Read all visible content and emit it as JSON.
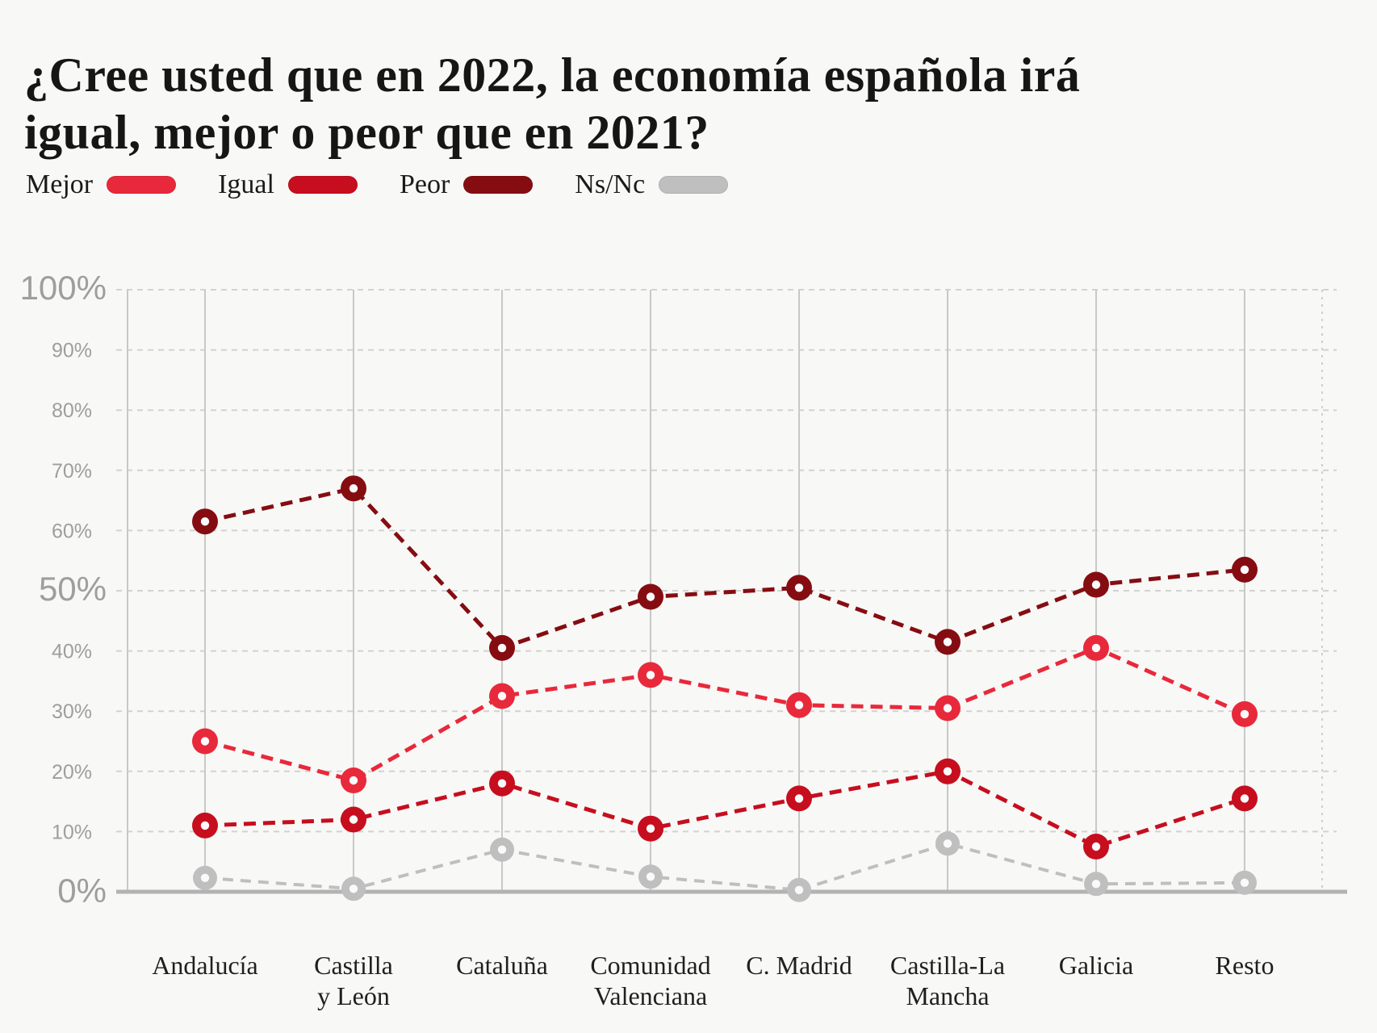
{
  "title": {
    "line1": "¿Cree usted que en 2022, la economía española irá",
    "line2": "igual, mejor o peor que en 2021?"
  },
  "legend": {
    "items": [
      {
        "label": "Mejor",
        "color": "#e8293b"
      },
      {
        "label": "Igual",
        "color": "#c60e1f"
      },
      {
        "label": "Peor",
        "color": "#850d12"
      },
      {
        "label": "Ns/Nc",
        "color": "#bfbfbf"
      }
    ]
  },
  "chart_data": {
    "type": "line",
    "title": "¿Cree usted que en 2022, la economía española irá igual, mejor o peor que en 2021?",
    "categories": [
      "Andalucía",
      "Castilla y León",
      "Cataluña",
      "Comunidad Valenciana",
      "C. Madrid",
      "Castilla-La Mancha",
      "Galicia",
      "Resto"
    ],
    "category_label_lines": [
      [
        "Andalucía"
      ],
      [
        "Castilla",
        "y León"
      ],
      [
        "Cataluña"
      ],
      [
        "Comunidad",
        "Valenciana"
      ],
      [
        "C. Madrid"
      ],
      [
        "Castilla-La",
        "Mancha"
      ],
      [
        "Galicia"
      ],
      [
        "Resto"
      ]
    ],
    "series": [
      {
        "name": "Mejor",
        "color": "#e8293b",
        "values": [
          25,
          18.5,
          32.5,
          36,
          31,
          30.5,
          40.5,
          29.5
        ]
      },
      {
        "name": "Igual",
        "color": "#c60e1f",
        "values": [
          11,
          12,
          18,
          10.5,
          15.5,
          20,
          7.5,
          15.5
        ]
      },
      {
        "name": "Peor",
        "color": "#850d12",
        "values": [
          61.5,
          67,
          40.5,
          49,
          50.5,
          41.5,
          51,
          53.5
        ]
      },
      {
        "name": "Ns/Nc",
        "color": "#bfbfbf",
        "values": [
          2.3,
          0.5,
          7,
          2.5,
          0.3,
          8,
          1.3,
          1.5
        ]
      }
    ],
    "ylim": [
      0,
      100
    ],
    "yticks": [
      0,
      10,
      20,
      30,
      40,
      50,
      60,
      70,
      80,
      90,
      100
    ],
    "ytick_labels": [
      "0%",
      "10%",
      "20%",
      "30%",
      "40%",
      "50%",
      "60%",
      "70%",
      "80%",
      "90%",
      "100%"
    ],
    "major_yticks": [
      0,
      50,
      100
    ],
    "xlabel": "",
    "ylabel": "",
    "grid": true,
    "line_style": "dashed",
    "marker": "donut",
    "legend_position": "top"
  },
  "colors": {
    "background": "#f8f8f6",
    "title_text": "#161616",
    "legend_text": "#1a1a1a",
    "gridline": "#d2d2d2",
    "column_line": "#c8c8c8",
    "right_border": "#cfcfcf",
    "axis_line": "#b3b3b3",
    "axis_tick_label": "#9e9e9e",
    "category_label": "#1f1f1f",
    "point_hole": "#fafafa"
  }
}
